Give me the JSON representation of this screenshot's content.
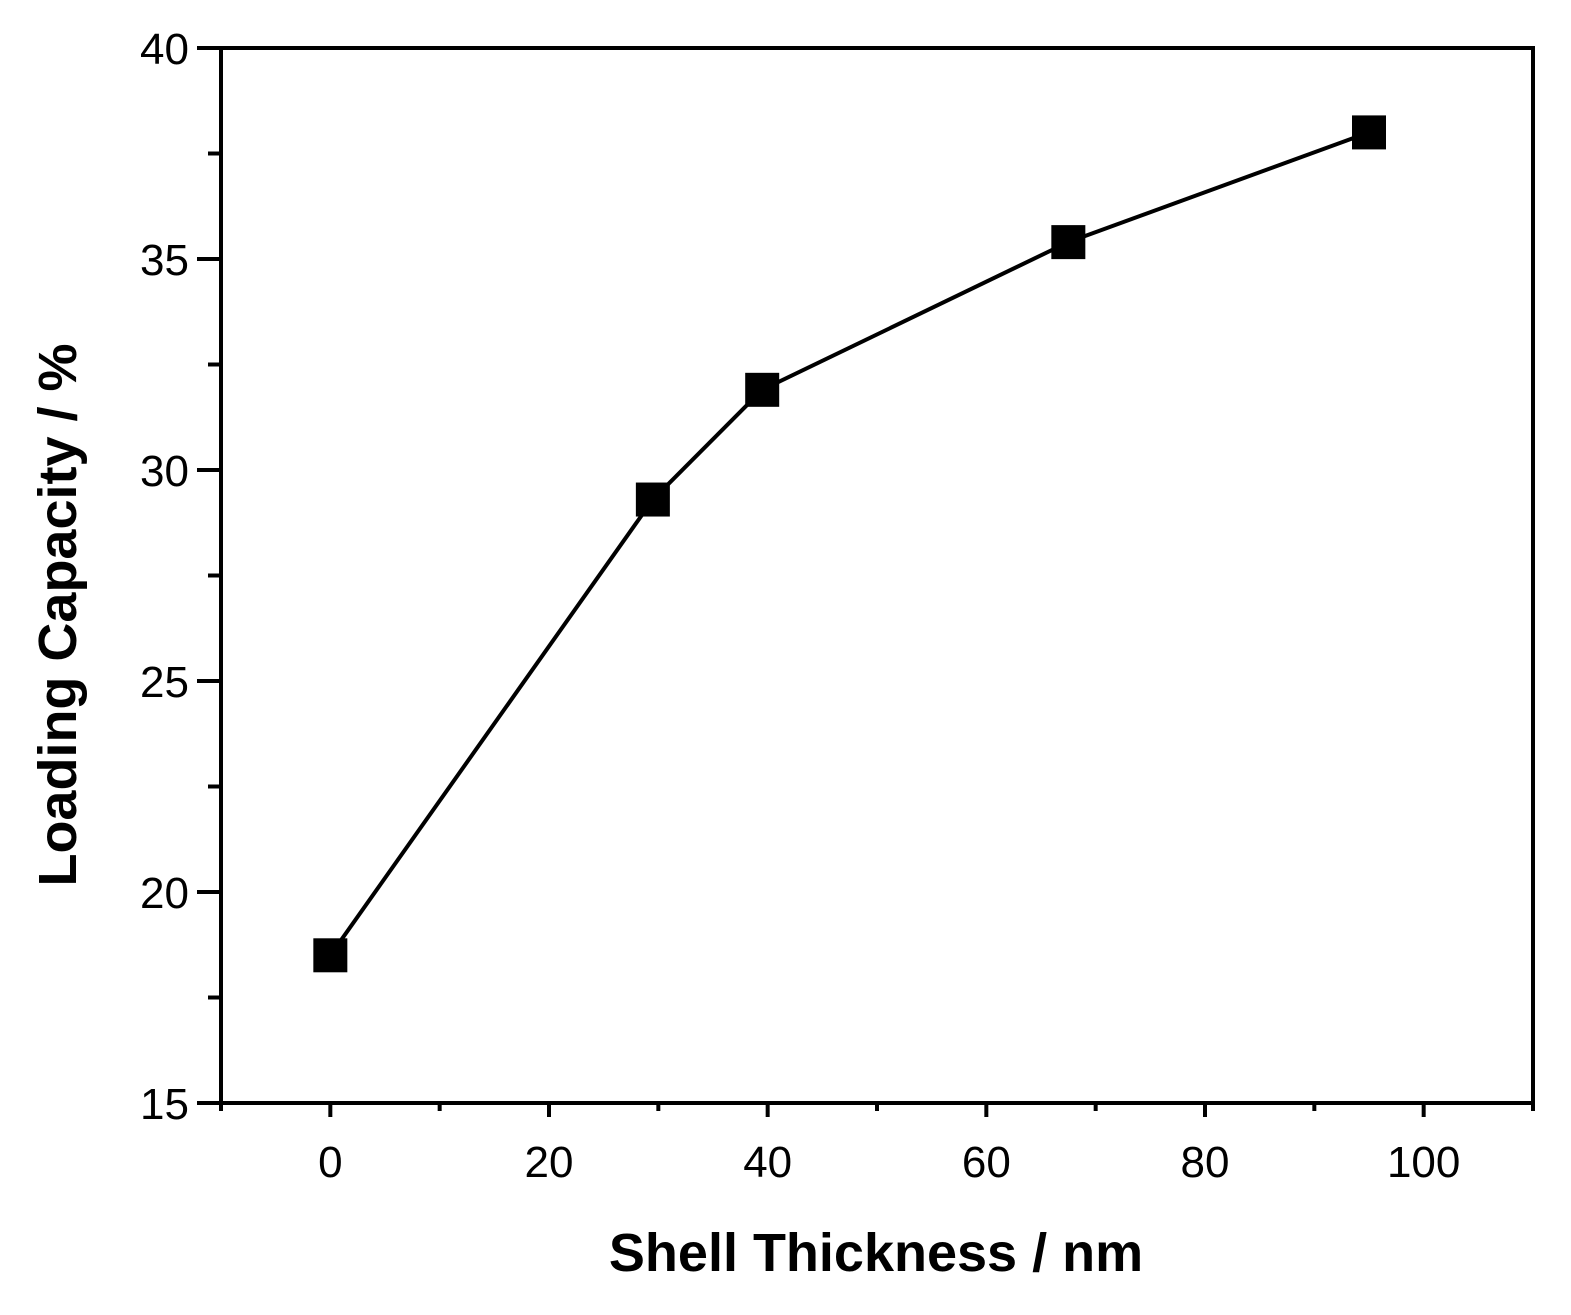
{
  "chart_data": {
    "type": "line",
    "title": "",
    "xlabel": "Shell Thickness  /  nm",
    "ylabel": "Loading Capacity  /  %",
    "xlim": [
      -10,
      110
    ],
    "ylim": [
      15,
      40
    ],
    "x_major_ticks": [
      0,
      20,
      40,
      60,
      80,
      100
    ],
    "x_minor_ticks": [
      -10,
      10,
      30,
      50,
      70,
      90,
      110
    ],
    "y_major_ticks": [
      15,
      20,
      25,
      30,
      35,
      40
    ],
    "y_minor_ticks": [
      17.5,
      22.5,
      27.5,
      32.5,
      37.5
    ],
    "grid": false,
    "legend": "none",
    "series": [
      {
        "name": "Loading Capacity",
        "marker": "square",
        "color": "#000000",
        "x": [
          0,
          29.5,
          39.5,
          67.5,
          95
        ],
        "y": [
          18.5,
          29.3,
          31.9,
          35.4,
          38.0
        ]
      }
    ]
  }
}
